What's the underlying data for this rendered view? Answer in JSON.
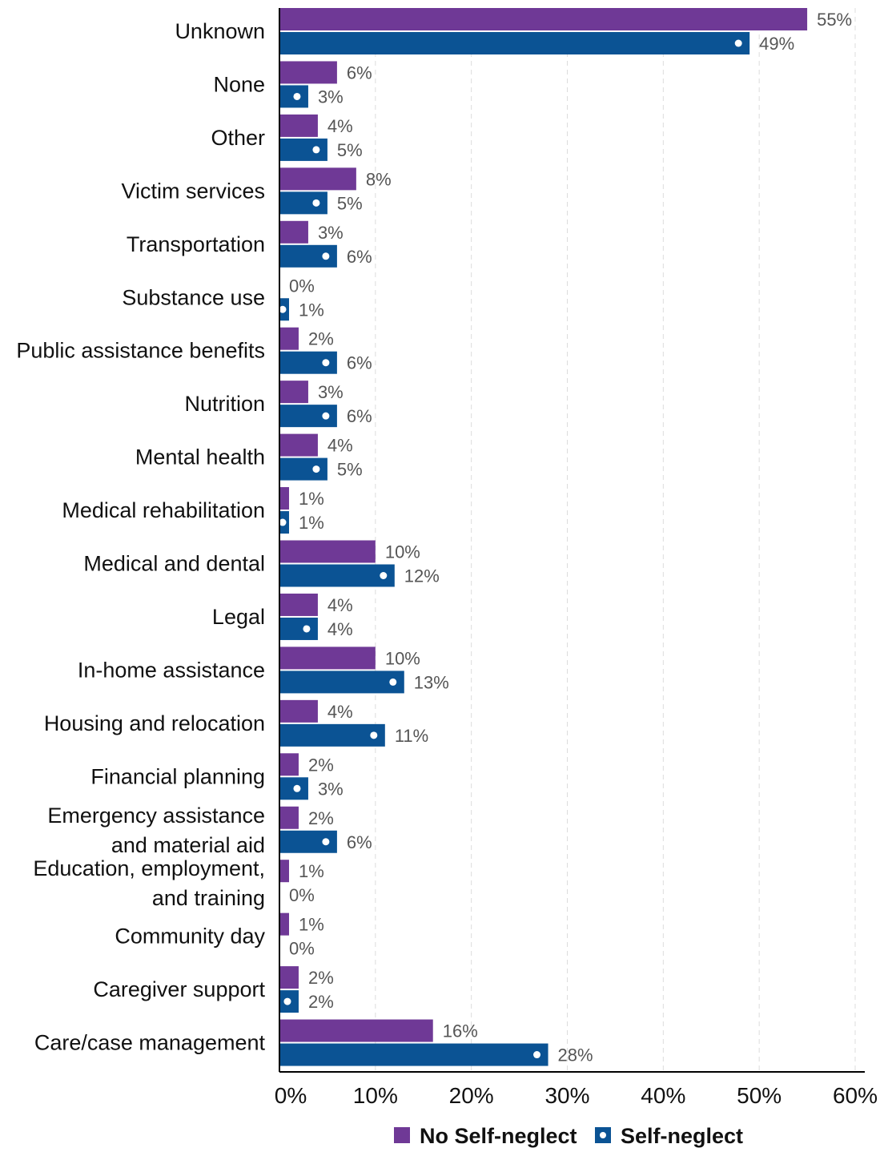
{
  "chart_data": {
    "type": "bar",
    "orientation": "horizontal",
    "categories": [
      "Unknown",
      "None",
      "Other",
      "Victim services",
      "Transportation",
      "Substance use",
      "Public assistance benefits",
      "Nutrition",
      "Mental health",
      "Medical rehabilitation",
      "Medical and dental",
      "Legal",
      "In-home assistance",
      "Housing and relocation",
      "Financial planning",
      "Emergency assistance and material aid",
      "Education, employment, and training",
      "Community day",
      "Caregiver support",
      "Care/case management"
    ],
    "category_lines": [
      [
        "Unknown"
      ],
      [
        "None"
      ],
      [
        "Other"
      ],
      [
        "Victim services"
      ],
      [
        "Transportation"
      ],
      [
        "Substance use"
      ],
      [
        "Public assistance benefits"
      ],
      [
        "Nutrition"
      ],
      [
        "Mental health"
      ],
      [
        "Medical rehabilitation"
      ],
      [
        "Medical and dental"
      ],
      [
        "Legal"
      ],
      [
        "In-home assistance"
      ],
      [
        "Housing and relocation"
      ],
      [
        "Financial planning"
      ],
      [
        "Emergency assistance",
        "and material aid"
      ],
      [
        "Education, employment,",
        "and training"
      ],
      [
        "Community day"
      ],
      [
        "Caregiver support"
      ],
      [
        "Care/case management"
      ]
    ],
    "series": [
      {
        "name": "No Self-neglect",
        "color": "#6f3996",
        "values": [
          55,
          6,
          4,
          8,
          3,
          0,
          2,
          3,
          4,
          1,
          10,
          4,
          10,
          4,
          2,
          2,
          1,
          1,
          2,
          16
        ],
        "labels": [
          "55%",
          "6%",
          "4%",
          "8%",
          "3%",
          "0%",
          "2%",
          "3%",
          "4%",
          "1%",
          "10%",
          "4%",
          "10%",
          "4%",
          "2%",
          "2%",
          "1%",
          "1%",
          "2%",
          "16%"
        ]
      },
      {
        "name": "Self-neglect",
        "color": "#0b5394",
        "values": [
          49,
          3,
          5,
          5,
          6,
          1,
          6,
          6,
          5,
          1,
          12,
          4,
          13,
          11,
          3,
          6,
          0,
          0,
          2,
          28
        ],
        "labels": [
          "49%",
          "3%",
          "5%",
          "5%",
          "6%",
          "1%",
          "6%",
          "6%",
          "5%",
          "1%",
          "12%",
          "4%",
          "13%",
          "11%",
          "3%",
          "6%",
          "0%",
          "0%",
          "2%",
          "28%"
        ]
      }
    ],
    "xlim": [
      0,
      60
    ],
    "xticks": [
      "0%",
      "10%",
      "20%",
      "30%",
      "40%",
      "50%",
      "60%"
    ],
    "grid": true,
    "legend_position": "bottom",
    "title": "",
    "xlabel": "",
    "ylabel": ""
  }
}
